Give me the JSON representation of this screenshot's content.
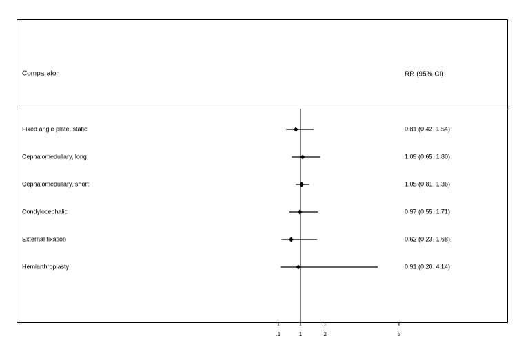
{
  "chart_data": {
    "type": "forest",
    "column_headers": [
      "Comparator",
      "RR (95% CI)"
    ],
    "categories": [
      "Fixed angle plate, static",
      "Cephalomedullary, long",
      "Cephalomedullary, short",
      "Condylocephalic",
      "External fixation",
      "Hemiarthroplasty"
    ],
    "values": [
      0.81,
      1.09,
      1.05,
      0.97,
      0.62,
      0.91
    ],
    "lower": [
      0.42,
      0.65,
      0.81,
      0.55,
      0.23,
      0.2
    ],
    "upper": [
      1.54,
      1.8,
      1.36,
      1.71,
      1.68,
      4.14
    ],
    "value_labels": [
      "0.81 (0.42, 1.54)",
      "1.09 (0.65, 1.80)",
      "1.05 (0.81, 1.36)",
      "0.97 (0.55, 1.71)",
      "0.62 (0.23, 1.68)",
      "0.91 (0.20, 4.14)"
    ],
    "reference_line": 1,
    "xlim": [
      -10.54,
      9.43
    ],
    "xticks": [
      {
        "value": 0.1,
        "label": ".1"
      },
      1,
      2,
      5
    ],
    "color": "#000000"
  }
}
